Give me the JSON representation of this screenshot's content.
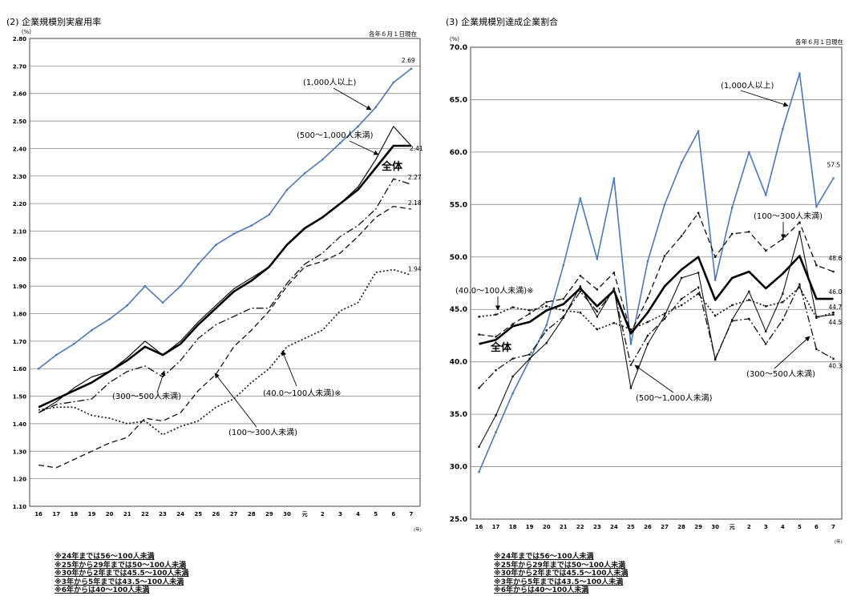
{
  "chart_data": [
    {
      "type": "line",
      "title": "(2) 企業規模別実雇用率",
      "date_note": "各年６月１日現在",
      "ylabel": "(%)",
      "xunit": "(年)",
      "ylim": [
        1.1,
        2.8
      ],
      "yticks": [
        "1.10",
        "1.20",
        "1.30",
        "1.40",
        "1.50",
        "1.60",
        "1.70",
        "1.80",
        "1.90",
        "2.00",
        "2.10",
        "2.20",
        "2.30",
        "2.40",
        "2.50",
        "2.60",
        "2.70",
        "2.80"
      ],
      "categories": [
        "16",
        "17",
        "18",
        "19",
        "20",
        "21",
        "22",
        "23",
        "24",
        "25",
        "26",
        "27",
        "28",
        "29",
        "30",
        "元",
        "2",
        "3",
        "4",
        "5",
        "6",
        "7"
      ],
      "grid": true,
      "series": [
        {
          "name": "(1,000人以上)",
          "values": [
            1.6,
            1.65,
            1.69,
            1.74,
            1.78,
            1.83,
            1.9,
            1.84,
            1.9,
            1.98,
            2.05,
            2.09,
            2.12,
            2.16,
            2.25,
            2.31,
            2.36,
            2.42,
            2.48,
            2.55,
            2.64,
            2.69
          ],
          "end_label": "2.69",
          "color": "#4a78b8",
          "style": "solid",
          "width": 1.6,
          "markers": true
        },
        {
          "name": "(500～1,000人未満)",
          "values": [
            1.44,
            1.48,
            1.53,
            1.57,
            1.59,
            1.64,
            1.7,
            1.65,
            1.7,
            1.77,
            1.83,
            1.89,
            1.93,
            1.97,
            2.05,
            2.11,
            2.15,
            2.2,
            2.26,
            2.36,
            2.48,
            2.41
          ],
          "color": "#111111",
          "style": "solid",
          "width": 1.2,
          "markers": false
        },
        {
          "name": "全体",
          "values": [
            1.46,
            1.49,
            1.52,
            1.55,
            1.59,
            1.63,
            1.68,
            1.65,
            1.69,
            1.76,
            1.82,
            1.88,
            1.92,
            1.97,
            2.05,
            2.11,
            2.15,
            2.2,
            2.25,
            2.33,
            2.41,
            2.41
          ],
          "end_label": "2.41",
          "color": "#000000",
          "style": "solid",
          "width": 2.6,
          "markers": false
        },
        {
          "name": "(300～500人未満)",
          "values": [
            1.44,
            1.47,
            1.48,
            1.49,
            1.55,
            1.59,
            1.61,
            1.57,
            1.63,
            1.71,
            1.76,
            1.79,
            1.82,
            1.82,
            1.91,
            1.98,
            2.02,
            2.08,
            2.12,
            2.18,
            2.29,
            2.27
          ],
          "end_label": "2.27",
          "color": "#111111",
          "style": "dashdot",
          "width": 1.3,
          "markers": false
        },
        {
          "name": "(100～300人未満)",
          "values": [
            1.25,
            1.24,
            1.27,
            1.3,
            1.33,
            1.35,
            1.42,
            1.41,
            1.44,
            1.52,
            1.58,
            1.68,
            1.74,
            1.81,
            1.9,
            1.97,
            1.99,
            2.02,
            2.08,
            2.15,
            2.19,
            2.18
          ],
          "end_label": "2.18",
          "color": "#111111",
          "style": "dashed",
          "width": 1.3,
          "markers": false
        },
        {
          "name": "(40.0～100人未満)※",
          "values": [
            1.45,
            1.46,
            1.46,
            1.43,
            1.42,
            1.4,
            1.41,
            1.36,
            1.39,
            1.41,
            1.46,
            1.49,
            1.55,
            1.6,
            1.68,
            1.71,
            1.74,
            1.81,
            1.84,
            1.95,
            1.96,
            1.94
          ],
          "end_label": "1.94",
          "color": "#111111",
          "style": "dotted",
          "width": 1.6,
          "markers": false
        }
      ],
      "annotations": [
        "(1,000人以上)",
        "(500～1,000人未満)",
        "全体",
        "(300～500人未満)",
        "(100～300人未満)",
        "(40.0～100人未満)※"
      ]
    },
    {
      "type": "line",
      "title": "(3) 企業規模別達成企業割合",
      "date_note": "各年６月１日現在",
      "ylabel": "(%)",
      "xunit": "(年)",
      "ylim": [
        25.0,
        70.0
      ],
      "yticks": [
        "25.0",
        "30.0",
        "35.0",
        "40.0",
        "45.0",
        "50.0",
        "55.0",
        "60.0",
        "65.0",
        "70.0"
      ],
      "categories": [
        "16",
        "17",
        "18",
        "19",
        "20",
        "21",
        "22",
        "23",
        "24",
        "25",
        "26",
        "27",
        "28",
        "29",
        "30",
        "元",
        "2",
        "3",
        "4",
        "5",
        "6",
        "7"
      ],
      "grid": true,
      "series": [
        {
          "name": "(1,000人以上)",
          "values": [
            29.5,
            33.3,
            37.0,
            40.2,
            43.5,
            49.2,
            55.6,
            49.8,
            57.5,
            41.7,
            49.6,
            55.0,
            59.0,
            62.0,
            47.8,
            54.7,
            60.0,
            55.9,
            62.2,
            67.5,
            54.8,
            57.5
          ],
          "end_label": "57.5",
          "color": "#4a78b8",
          "style": "solid",
          "width": 1.6,
          "markers": true
        },
        {
          "name": "(100～300人未満)",
          "values": [
            42.6,
            42.4,
            43.6,
            44.6,
            45.7,
            46.0,
            48.2,
            46.9,
            48.5,
            42.8,
            46.1,
            50.1,
            52.0,
            54.2,
            50.0,
            52.2,
            52.4,
            50.6,
            51.7,
            53.3,
            49.2,
            48.6
          ],
          "end_label": "48.6",
          "color": "#111111",
          "style": "dashed",
          "width": 1.3,
          "markers": true
        },
        {
          "name": "全体",
          "values": [
            41.7,
            42.1,
            43.4,
            43.8,
            44.9,
            45.5,
            47.0,
            45.3,
            46.8,
            42.7,
            44.7,
            47.2,
            48.8,
            50.0,
            45.9,
            48.0,
            48.6,
            47.0,
            48.4,
            50.1,
            46.0,
            46.0
          ],
          "end_label": "46.0",
          "color": "#000000",
          "style": "solid",
          "width": 2.6,
          "markers": false
        },
        {
          "name": "(40.0～100人未満)※",
          "values": [
            44.3,
            44.5,
            45.2,
            44.9,
            45.3,
            44.9,
            44.7,
            43.1,
            43.7,
            43.1,
            43.8,
            44.6,
            45.4,
            46.5,
            44.4,
            45.4,
            45.9,
            45.3,
            45.7,
            47.1,
            44.2,
            44.7
          ],
          "end_label": "44.7",
          "color": "#111111",
          "style": "dotted",
          "width": 1.6,
          "markers": true
        },
        {
          "name": "(500～1,000人未満)",
          "values": [
            31.9,
            34.9,
            38.6,
            40.3,
            41.8,
            44.2,
            47.2,
            44.3,
            47.0,
            37.5,
            41.7,
            44.4,
            48.0,
            48.5,
            40.2,
            44.0,
            46.7,
            42.9,
            46.5,
            52.4,
            44.3,
            44.5
          ],
          "end_label": "44.5",
          "color": "#111111",
          "style": "solid",
          "width": 1.1,
          "markers": true
        },
        {
          "name": "(300～500人未満)",
          "values": [
            37.5,
            39.2,
            40.3,
            40.7,
            43.0,
            44.3,
            46.7,
            44.8,
            46.8,
            39.7,
            42.5,
            44.1,
            46.0,
            47.1,
            40.3,
            43.9,
            44.1,
            41.7,
            44.0,
            47.4,
            41.2,
            40.3
          ],
          "end_label": "40.3",
          "color": "#111111",
          "style": "dashdot",
          "width": 1.3,
          "markers": true
        }
      ],
      "annotations": [
        "(1,000人以上)",
        "(100～300人未満)",
        "(40.0～100人未満)※",
        "全体",
        "(500～1,000人未満)",
        "(300～500人未満)"
      ]
    }
  ],
  "notes": {
    "left": [
      "※24年までは56～100人未満",
      "※25年から29年までは50～100人未満",
      "※30年から2年までは45.5～100人未満",
      "※3年から5年までは43.5～100人未満",
      "※6年からは40～100人未満"
    ],
    "right": [
      "※24年までは56～100人未満",
      "※25年から29年までは50～100人未満",
      "※30年から2年までは45.5～100人未満",
      "※3年から5年までは43.5～100人未満",
      "※6年からは40～100人未満"
    ]
  }
}
